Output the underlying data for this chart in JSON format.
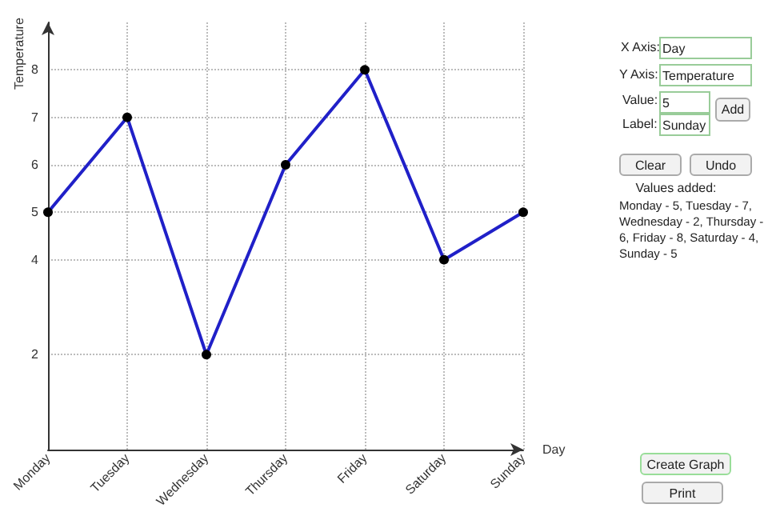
{
  "chart_data": [
    {
      "type": "line",
      "xlabel": "Day",
      "ylabel": "Temperature",
      "categories": [
        "Monday",
        "Tuesday",
        "Wednesday",
        "Thursday",
        "Friday",
        "Saturday",
        "Sunday"
      ],
      "series": [
        {
          "color": "#2020c8",
          "values": [
            5,
            7,
            2,
            6,
            8,
            4,
            5
          ]
        }
      ],
      "ylim": [
        0,
        9
      ],
      "yticks": [
        2,
        4,
        5,
        6,
        7,
        8
      ],
      "grid": true,
      "marker": "circle",
      "line_style": "solid"
    },
    {
      "type": "other",
      "annotations": [
        "X Axis:",
        "Day",
        "Y Axis:",
        "Temperature",
        "Value:",
        "5",
        "Label:",
        "Sunday",
        "Add",
        "Clear",
        "Undo",
        "Values added:",
        "Monday - 5,  Tuesday - 7,  Wednesday - 2, Thursday - 6,  Friday - 8, Saturday - 4,  Sunday - 5",
        "Create Graph",
        "Print"
      ]
    }
  ]
}
